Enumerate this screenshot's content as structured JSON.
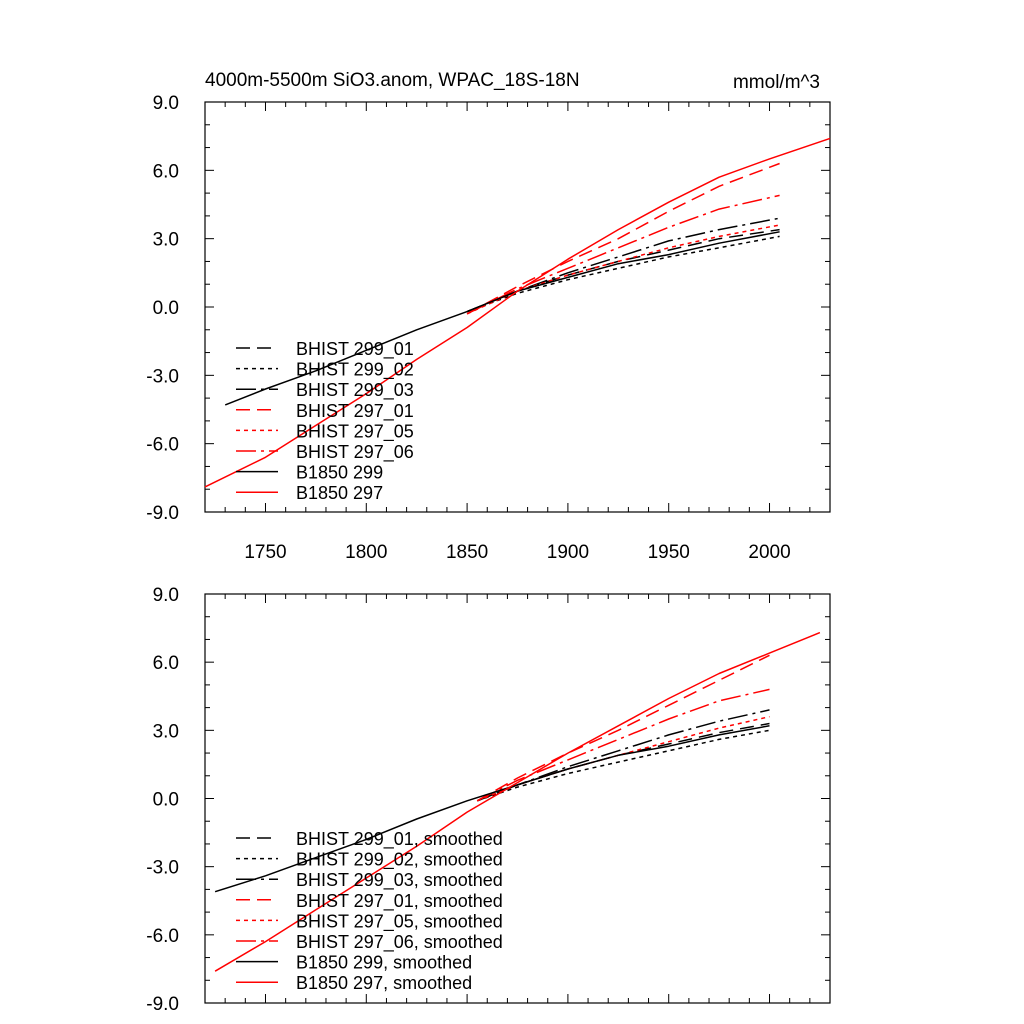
{
  "figure": {
    "title": "4000m-5500m SiO3.anom, WPAC_18S-18N",
    "units": "mmol/m^3"
  },
  "chart_data": [
    {
      "type": "line",
      "panel": "top",
      "xlim": [
        1720,
        2030
      ],
      "ylim": [
        -9,
        9
      ],
      "xticks": [
        1750,
        1800,
        1850,
        1900,
        1950,
        2000
      ],
      "xtick_labels": [
        "1750",
        "1800",
        "1850",
        "1900",
        "1950",
        "2000"
      ],
      "yticks": [
        -9,
        -6,
        -3,
        0,
        3,
        6,
        9
      ],
      "ytick_labels": [
        "-9.0",
        "-6.0",
        "-3.0",
        "0.0",
        "3.0",
        "6.0",
        "9.0"
      ],
      "legend_position": "bottom-left",
      "series": [
        {
          "name": "BHIST 299_01",
          "color": "#000000",
          "dash": "medium",
          "x": [
            1850,
            1875,
            1900,
            1925,
            1950,
            1975,
            2005
          ],
          "y": [
            -0.2,
            0.7,
            1.4,
            2.0,
            2.5,
            3.0,
            3.4
          ]
        },
        {
          "name": "BHIST 299_02",
          "color": "#000000",
          "dash": "dotted",
          "x": [
            1850,
            1875,
            1900,
            1925,
            1950,
            1975,
            2005
          ],
          "y": [
            -0.2,
            0.6,
            1.2,
            1.7,
            2.2,
            2.6,
            3.1
          ]
        },
        {
          "name": "BHIST 299_03",
          "color": "#000000",
          "dash": "dashdot",
          "x": [
            1850,
            1875,
            1900,
            1925,
            1950,
            1975,
            2005
          ],
          "y": [
            -0.2,
            0.7,
            1.5,
            2.2,
            2.9,
            3.4,
            3.9
          ]
        },
        {
          "name": "BHIST 297_01",
          "color": "#ff0000",
          "dash": "medium",
          "x": [
            1850,
            1875,
            1900,
            1925,
            1950,
            1975,
            2005
          ],
          "y": [
            -0.3,
            0.9,
            2.0,
            3.0,
            4.2,
            5.3,
            6.3
          ]
        },
        {
          "name": "BHIST 297_05",
          "color": "#ff0000",
          "dash": "dotted",
          "x": [
            1850,
            1875,
            1900,
            1925,
            1950,
            1975,
            2005
          ],
          "y": [
            -0.3,
            0.7,
            1.4,
            2.0,
            2.6,
            3.1,
            3.6
          ]
        },
        {
          "name": "BHIST 297_06",
          "color": "#ff0000",
          "dash": "dashdot",
          "x": [
            1850,
            1875,
            1900,
            1925,
            1950,
            1975,
            2005
          ],
          "y": [
            -0.3,
            0.8,
            1.7,
            2.6,
            3.5,
            4.3,
            4.9
          ]
        },
        {
          "name": "B1850 299",
          "color": "#000000",
          "dash": "solid",
          "x": [
            1730,
            1750,
            1775,
            1800,
            1825,
            1850,
            1875,
            1900,
            1925,
            1950,
            1975,
            2005
          ],
          "y": [
            -4.3,
            -3.6,
            -2.8,
            -1.9,
            -1.0,
            -0.2,
            0.7,
            1.3,
            1.9,
            2.3,
            2.8,
            3.3
          ]
        },
        {
          "name": "B1850 297",
          "color": "#ff0000",
          "dash": "solid",
          "x": [
            1720,
            1750,
            1775,
            1800,
            1825,
            1850,
            1875,
            1900,
            1925,
            1950,
            1975,
            2000,
            2030
          ],
          "y": [
            -7.9,
            -6.6,
            -5.2,
            -3.8,
            -2.3,
            -0.9,
            0.7,
            2.1,
            3.4,
            4.6,
            5.7,
            6.5,
            7.4
          ]
        }
      ]
    },
    {
      "type": "line",
      "panel": "bottom",
      "xlim": [
        1720,
        2030
      ],
      "ylim": [
        -9,
        9
      ],
      "yticks": [
        -9,
        -6,
        -3,
        0,
        3,
        6,
        9
      ],
      "ytick_labels": [
        "-9.0",
        "-6.0",
        "-3.0",
        "0.0",
        "3.0",
        "6.0",
        "9.0"
      ],
      "legend_position": "bottom-left",
      "series": [
        {
          "name": "BHIST 299_01, smoothed",
          "color": "#000000",
          "dash": "medium",
          "x": [
            1855,
            1875,
            1900,
            1925,
            1950,
            1975,
            2000
          ],
          "y": [
            -0.1,
            0.6,
            1.3,
            1.9,
            2.4,
            2.9,
            3.3
          ]
        },
        {
          "name": "BHIST 299_02, smoothed",
          "color": "#000000",
          "dash": "dotted",
          "x": [
            1855,
            1875,
            1900,
            1925,
            1950,
            1975,
            2000
          ],
          "y": [
            -0.1,
            0.5,
            1.1,
            1.6,
            2.1,
            2.6,
            3.0
          ]
        },
        {
          "name": "BHIST 299_03, smoothed",
          "color": "#000000",
          "dash": "dashdot",
          "x": [
            1855,
            1875,
            1900,
            1925,
            1950,
            1975,
            2000
          ],
          "y": [
            -0.1,
            0.6,
            1.4,
            2.1,
            2.8,
            3.4,
            3.9
          ]
        },
        {
          "name": "BHIST 297_01, smoothed",
          "color": "#ff0000",
          "dash": "medium",
          "x": [
            1855,
            1875,
            1900,
            1925,
            1950,
            1975,
            2000
          ],
          "y": [
            -0.1,
            0.9,
            2.0,
            3.0,
            4.1,
            5.2,
            6.3
          ]
        },
        {
          "name": "BHIST 297_05, smoothed",
          "color": "#ff0000",
          "dash": "dotted",
          "x": [
            1855,
            1875,
            1900,
            1925,
            1950,
            1975,
            2000
          ],
          "y": [
            -0.1,
            0.6,
            1.3,
            1.9,
            2.5,
            3.1,
            3.6
          ]
        },
        {
          "name": "BHIST 297_06, smoothed",
          "color": "#ff0000",
          "dash": "dashdot",
          "x": [
            1855,
            1875,
            1900,
            1925,
            1950,
            1975,
            2000
          ],
          "y": [
            -0.1,
            0.8,
            1.7,
            2.6,
            3.5,
            4.3,
            4.8
          ]
        },
        {
          "name": "B1850 299, smoothed",
          "color": "#000000",
          "dash": "solid",
          "x": [
            1725,
            1750,
            1775,
            1800,
            1825,
            1850,
            1875,
            1900,
            1925,
            1950,
            1975,
            2000
          ],
          "y": [
            -4.1,
            -3.4,
            -2.6,
            -1.8,
            -0.9,
            -0.1,
            0.6,
            1.3,
            1.9,
            2.3,
            2.8,
            3.2
          ]
        },
        {
          "name": "B1850 297, smoothed",
          "color": "#ff0000",
          "dash": "solid",
          "x": [
            1725,
            1750,
            1775,
            1800,
            1825,
            1850,
            1875,
            1900,
            1925,
            1950,
            1975,
            2000,
            2025
          ],
          "y": [
            -7.6,
            -6.3,
            -4.9,
            -3.5,
            -2.1,
            -0.6,
            0.7,
            2.0,
            3.2,
            4.4,
            5.5,
            6.4,
            7.3
          ]
        }
      ]
    }
  ]
}
